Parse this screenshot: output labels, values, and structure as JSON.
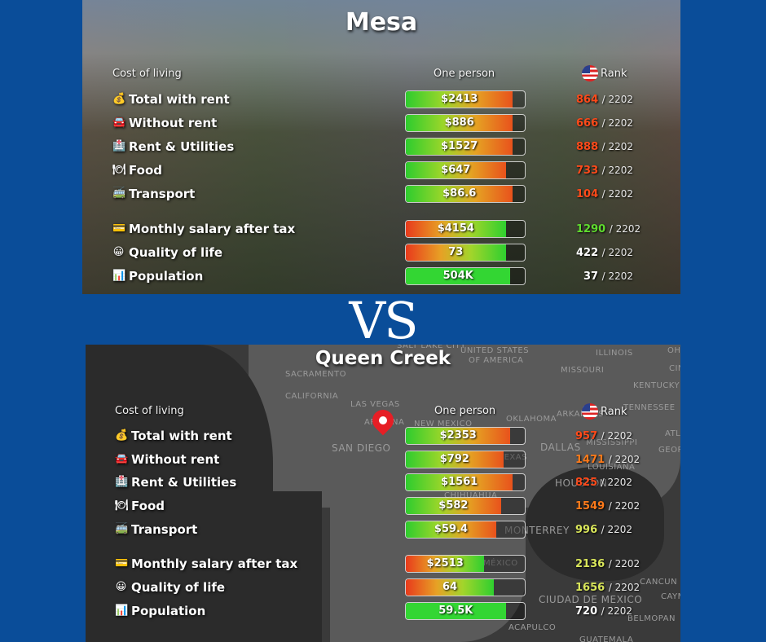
{
  "vs_text": "VS",
  "colors": {
    "background": "#0a4d99",
    "rank_red": "#ff4a1a",
    "rank_orange": "#ff7a1a",
    "rank_green": "#5fdc2e",
    "rank_yellow": "#d9e65a",
    "rank_white": "#ffffff"
  },
  "mesa": {
    "title": "Mesa",
    "header_cost": "Cost of living",
    "header_person": "One person",
    "header_rank": "Rank",
    "rows": [
      {
        "icon": "💰",
        "icon_name": "money-bag-icon",
        "label": "Total with rent",
        "value": "$2413",
        "rank": "864",
        "total": "/ 2202"
      },
      {
        "icon": "🚘",
        "icon_name": "car-icon",
        "label": "Without rent",
        "value": "$886",
        "rank": "666",
        "total": "/ 2202"
      },
      {
        "icon": "🏥",
        "icon_name": "building-icon",
        "label": "Rent & Utilities",
        "value": "$1527",
        "rank": "888",
        "total": "/ 2202"
      },
      {
        "icon": "🍽",
        "icon_name": "food-icon",
        "label": "Food",
        "value": "$647",
        "rank": "733",
        "total": "/ 2202"
      },
      {
        "icon": "🚎",
        "icon_name": "bus-icon",
        "label": "Transport",
        "value": "$86.6",
        "rank": "104",
        "total": "/ 2202"
      },
      {
        "icon": "💳",
        "icon_name": "salary-icon",
        "label": "Monthly salary after tax",
        "value": "$4154",
        "rank": "1290",
        "total": "/ 2202"
      },
      {
        "icon": "😀",
        "icon_name": "smile-icon",
        "label": "Quality of life",
        "value": "73",
        "rank": "422",
        "total": "/ 2202"
      },
      {
        "icon": "📊",
        "icon_name": "population-icon",
        "label": "Population",
        "value": "504K",
        "rank": "37",
        "total": "/ 2202"
      }
    ]
  },
  "queen_creek": {
    "title": "Queen Creek",
    "header_cost": "Cost of living",
    "header_person": "One person",
    "header_rank": "Rank",
    "map_labels": [
      "UNITED STATES",
      "OF AMERICA",
      "SACRAMENTO",
      "CALIFORNIA",
      "LAS VEGAS",
      "ARIZONA",
      "NEW MEXICO",
      "SAN DIEGO",
      "OKLAHOMA",
      "ARKANSAS",
      "DALLAS",
      "MISSISSIPPI",
      "TEXAS",
      "LOUISIANA",
      "HOUSTON",
      "CHIHUAHUA",
      "MONTERREY",
      "MÉXICO",
      "CIUDAD DE MEXICO",
      "ACAPULCO",
      "GUATEMALA",
      "ILLINOIS",
      "MISSOURI",
      "KENTUCKY",
      "TENNESSEE",
      "CANCUN",
      "BELMOPAN",
      "GEORGIA",
      "CINCINNATI",
      "SALT LAKE CITY",
      "OHIO",
      "ATLANTA",
      "CAYMAN"
    ],
    "rows": [
      {
        "icon": "💰",
        "icon_name": "money-bag-icon",
        "label": "Total with rent",
        "value": "$2353",
        "rank": "957",
        "total": "/ 2202"
      },
      {
        "icon": "🚘",
        "icon_name": "car-icon",
        "label": "Without rent",
        "value": "$792",
        "rank": "1471",
        "total": "/ 2202"
      },
      {
        "icon": "🏥",
        "icon_name": "building-icon",
        "label": "Rent & Utilities",
        "value": "$1561",
        "rank": "825",
        "total": "/ 2202"
      },
      {
        "icon": "🍽",
        "icon_name": "food-icon",
        "label": "Food",
        "value": "$582",
        "rank": "1549",
        "total": "/ 2202"
      },
      {
        "icon": "🚎",
        "icon_name": "bus-icon",
        "label": "Transport",
        "value": "$59.4",
        "rank": "996",
        "total": "/ 2202"
      },
      {
        "icon": "💳",
        "icon_name": "salary-icon",
        "label": "Monthly salary after tax",
        "value": "$2513",
        "rank": "2136",
        "total": "/ 2202"
      },
      {
        "icon": "😀",
        "icon_name": "smile-icon",
        "label": "Quality of life",
        "value": "64",
        "rank": "1656",
        "total": "/ 2202"
      },
      {
        "icon": "📊",
        "icon_name": "population-icon",
        "label": "Population",
        "value": "59.5K",
        "rank": "720",
        "total": "/ 2202"
      }
    ]
  }
}
